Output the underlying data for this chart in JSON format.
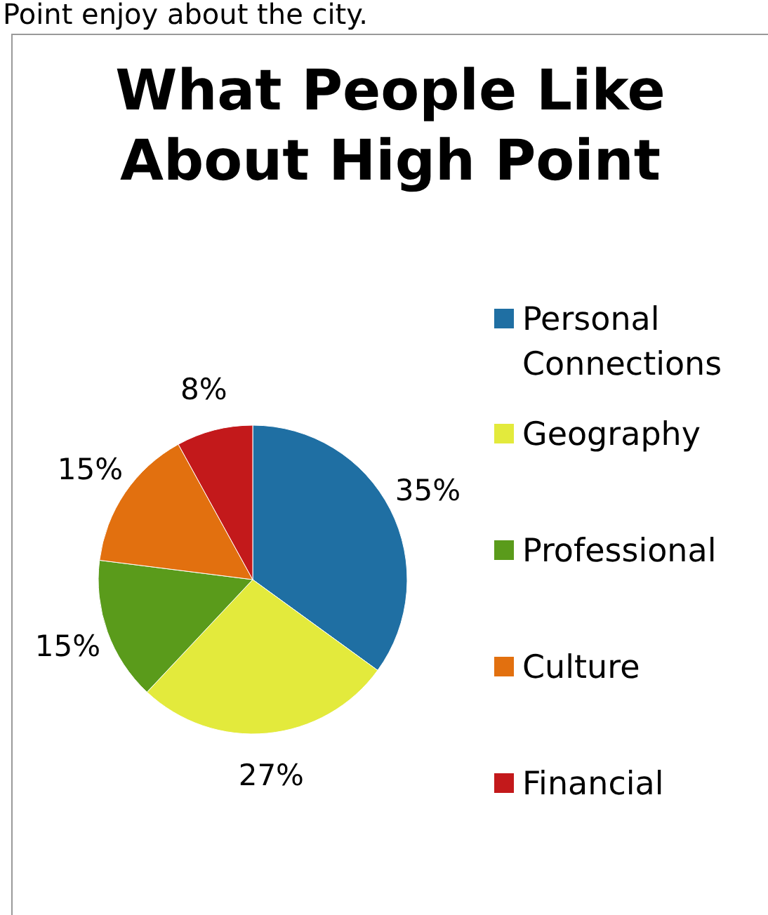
{
  "chart_data": {
    "type": "pie",
    "title": "What People Like About High Point",
    "categories": [
      "Personal Connections",
      "Geography",
      "Professional",
      "Culture",
      "Financial"
    ],
    "values": [
      35,
      27,
      15,
      15,
      8
    ],
    "value_labels": [
      "35%",
      "27%",
      "15%",
      "15%",
      "8%"
    ],
    "colors": [
      "#1f6fa3",
      "#e3ea3c",
      "#5a9b1b",
      "#e2700f",
      "#c3191b"
    ],
    "legend": "right",
    "annotations": [
      "Point enjoy about the city."
    ]
  }
}
